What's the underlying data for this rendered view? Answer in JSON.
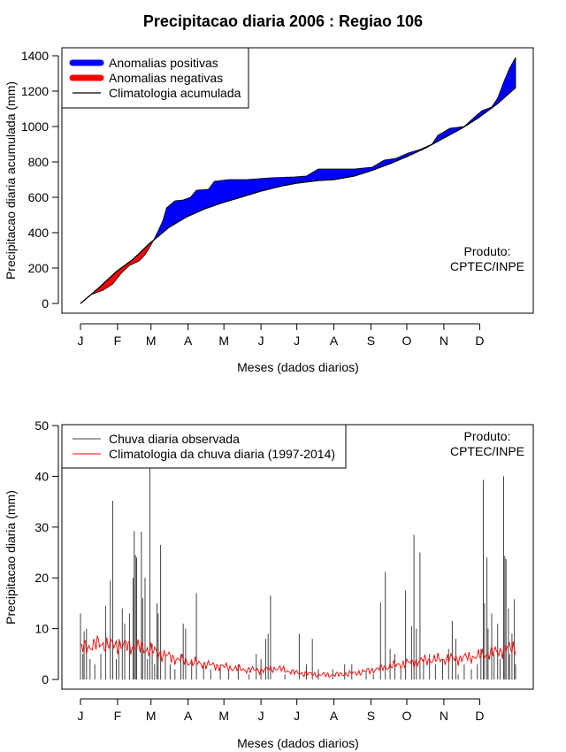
{
  "title": "Precipitacao diaria 2006 : Regiao 106",
  "months": [
    "J",
    "F",
    "M",
    "A",
    "M",
    "J",
    "J",
    "A",
    "S",
    "O",
    "N",
    "D"
  ],
  "xlabel": "Meses (dados diarios)",
  "product_line1": "Produto:",
  "product_line2": "CPTEC/INPE",
  "chart_data": [
    {
      "type": "area",
      "ylabel": "Precipitacao diaria acumulada (mm)",
      "xlabel": "Meses (dados diarios)",
      "xlim": [
        1,
        365
      ],
      "ylim": [
        0,
        1400
      ],
      "yticks": [
        0,
        200,
        400,
        600,
        800,
        1000,
        1200,
        1400
      ],
      "legend": {
        "position": "top-left",
        "entries": [
          "Anomalias positivas",
          "Anomalias negativas",
          "Climatologia acumulada"
        ]
      },
      "colors": {
        "positive": "#0000ff",
        "negative": "#ff0000",
        "climatology": "#000000"
      },
      "climatology_knots": [
        [
          1,
          0
        ],
        [
          15,
          80
        ],
        [
          31,
          180
        ],
        [
          45,
          250
        ],
        [
          59,
          340
        ],
        [
          75,
          430
        ],
        [
          90,
          490
        ],
        [
          105,
          535
        ],
        [
          120,
          570
        ],
        [
          135,
          600
        ],
        [
          152,
          635
        ],
        [
          170,
          665
        ],
        [
          182,
          680
        ],
        [
          200,
          695
        ],
        [
          213,
          700
        ],
        [
          230,
          720
        ],
        [
          244,
          750
        ],
        [
          260,
          790
        ],
        [
          274,
          830
        ],
        [
          290,
          880
        ],
        [
          305,
          935
        ],
        [
          320,
          990
        ],
        [
          334,
          1050
        ],
        [
          350,
          1130
        ],
        [
          365,
          1220
        ]
      ],
      "observed_knots": [
        [
          1,
          0
        ],
        [
          10,
          50
        ],
        [
          20,
          75
        ],
        [
          28,
          110
        ],
        [
          35,
          170
        ],
        [
          42,
          215
        ],
        [
          50,
          240
        ],
        [
          55,
          275
        ],
        [
          60,
          330
        ],
        [
          66,
          410
        ],
        [
          70,
          470
        ],
        [
          73,
          540
        ],
        [
          80,
          580
        ],
        [
          87,
          585
        ],
        [
          93,
          600
        ],
        [
          98,
          640
        ],
        [
          108,
          645
        ],
        [
          113,
          690
        ],
        [
          125,
          700
        ],
        [
          140,
          700
        ],
        [
          160,
          710
        ],
        [
          180,
          715
        ],
        [
          190,
          720
        ],
        [
          200,
          760
        ],
        [
          230,
          760
        ],
        [
          245,
          770
        ],
        [
          255,
          810
        ],
        [
          265,
          820
        ],
        [
          275,
          850
        ],
        [
          285,
          870
        ],
        [
          295,
          900
        ],
        [
          300,
          950
        ],
        [
          310,
          990
        ],
        [
          322,
          1000
        ],
        [
          330,
          1050
        ],
        [
          337,
          1090
        ],
        [
          345,
          1110
        ],
        [
          350,
          1160
        ],
        [
          355,
          1250
        ],
        [
          360,
          1330
        ],
        [
          365,
          1390
        ]
      ]
    },
    {
      "type": "line",
      "ylabel": "Precipitacao diaria (mm)",
      "xlabel": "Meses (dados diarios)",
      "xlim": [
        1,
        365
      ],
      "ylim": [
        0,
        50
      ],
      "yticks": [
        0,
        10,
        20,
        30,
        40,
        50
      ],
      "legend": {
        "position": "top-left",
        "entries": [
          "Chuva diaria observada",
          "Climatologia da chuva diaria (1997-2014)"
        ]
      },
      "colors": {
        "observed": "#444444",
        "climatology": "#ff0000"
      },
      "observed_spikes": [
        [
          1,
          13.0
        ],
        [
          3,
          5.0
        ],
        [
          4,
          9.5
        ],
        [
          6,
          10.0
        ],
        [
          9,
          4.0
        ],
        [
          13,
          3.0
        ],
        [
          18,
          5.0
        ],
        [
          22,
          14.5
        ],
        [
          26,
          19.5
        ],
        [
          28,
          35.2
        ],
        [
          31,
          4.0
        ],
        [
          33,
          8.0
        ],
        [
          36,
          14.0
        ],
        [
          38,
          11.0
        ],
        [
          42,
          13.0
        ],
        [
          45,
          20.0
        ],
        [
          46,
          29.2
        ],
        [
          47,
          24.5
        ],
        [
          48,
          24.0
        ],
        [
          52,
          29.1
        ],
        [
          53,
          16.0
        ],
        [
          55,
          20.0
        ],
        [
          57,
          4.0
        ],
        [
          59,
          43.0
        ],
        [
          61,
          7.0
        ],
        [
          63,
          3.0
        ],
        [
          65,
          15.0
        ],
        [
          66,
          13.0
        ],
        [
          68,
          26.5
        ],
        [
          72,
          5.0
        ],
        [
          76,
          3.0
        ],
        [
          80,
          2.0
        ],
        [
          85,
          5.0
        ],
        [
          87,
          11.0
        ],
        [
          89,
          10.0
        ],
        [
          94,
          4.0
        ],
        [
          98,
          17.0
        ],
        [
          104,
          3.0
        ],
        [
          110,
          2.0
        ],
        [
          118,
          3.0
        ],
        [
          125,
          1.5
        ],
        [
          133,
          3.0
        ],
        [
          142,
          1.0
        ],
        [
          148,
          5.0
        ],
        [
          152,
          4.0
        ],
        [
          156,
          8.0
        ],
        [
          158,
          9.0
        ],
        [
          160,
          16.5
        ],
        [
          172,
          1.0
        ],
        [
          184,
          9.0
        ],
        [
          190,
          3.0
        ],
        [
          195,
          8.0
        ],
        [
          200,
          2.0
        ],
        [
          212,
          2.0
        ],
        [
          222,
          3.0
        ],
        [
          228,
          3.0
        ],
        [
          240,
          1.5
        ],
        [
          246,
          1.0
        ],
        [
          252,
          15.2
        ],
        [
          256,
          21.2
        ],
        [
          260,
          6.0
        ],
        [
          264,
          5.0
        ],
        [
          269,
          2.0
        ],
        [
          273,
          17.5
        ],
        [
          278,
          10.5
        ],
        [
          280,
          28.5
        ],
        [
          282,
          10.0
        ],
        [
          285,
          25.0
        ],
        [
          288,
          4.0
        ],
        [
          293,
          5.0
        ],
        [
          298,
          3.0
        ],
        [
          304,
          4.0
        ],
        [
          309,
          6.0
        ],
        [
          312,
          11.5
        ],
        [
          315,
          8.0
        ],
        [
          317,
          1.0
        ],
        [
          322,
          3.0
        ],
        [
          328,
          2.0
        ],
        [
          333,
          3.0
        ],
        [
          336,
          6.0
        ],
        [
          338,
          39.3
        ],
        [
          339,
          15.0
        ],
        [
          341,
          24.0
        ],
        [
          342,
          10.0
        ],
        [
          345,
          13.0
        ],
        [
          347,
          5.0
        ],
        [
          350,
          11.0
        ],
        [
          352,
          4.0
        ],
        [
          355,
          40.0
        ],
        [
          356,
          24.3
        ],
        [
          357,
          23.7
        ],
        [
          359,
          14.0
        ],
        [
          360,
          5.0
        ],
        [
          362,
          9.0
        ],
        [
          364,
          15.8
        ],
        [
          365,
          3.0
        ]
      ],
      "climatology_knots": [
        [
          1,
          6.0
        ],
        [
          15,
          7.0
        ],
        [
          31,
          6.8
        ],
        [
          45,
          6.5
        ],
        [
          59,
          5.8
        ],
        [
          75,
          4.5
        ],
        [
          90,
          3.5
        ],
        [
          105,
          3.0
        ],
        [
          120,
          2.5
        ],
        [
          135,
          2.0
        ],
        [
          152,
          1.8
        ],
        [
          165,
          2.2
        ],
        [
          182,
          1.3
        ],
        [
          200,
          0.9
        ],
        [
          213,
          0.9
        ],
        [
          230,
          1.2
        ],
        [
          244,
          1.8
        ],
        [
          260,
          2.6
        ],
        [
          274,
          3.2
        ],
        [
          290,
          3.8
        ],
        [
          305,
          4.0
        ],
        [
          320,
          4.2
        ],
        [
          334,
          4.6
        ],
        [
          350,
          5.5
        ],
        [
          365,
          6.5
        ]
      ]
    }
  ]
}
